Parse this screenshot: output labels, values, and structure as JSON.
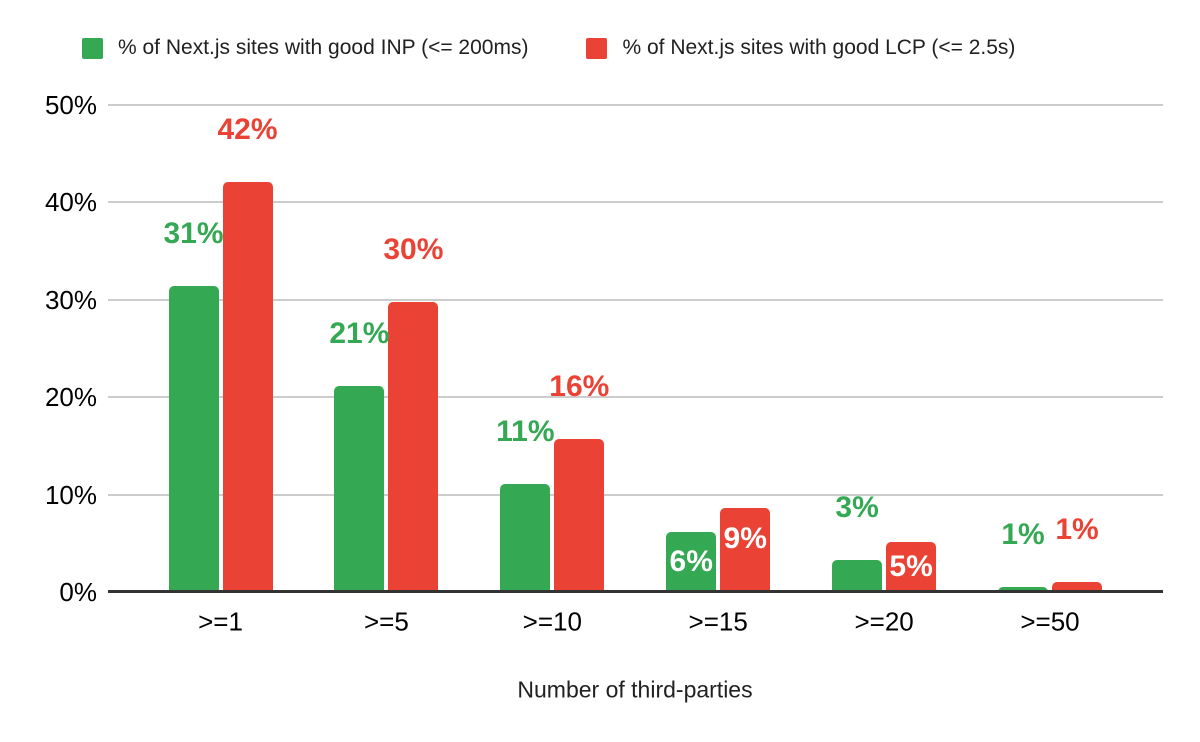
{
  "chart_data": {
    "type": "bar",
    "title": "",
    "xlabel": "Number of third-parties",
    "ylabel": "",
    "ylim": [
      0,
      50
    ],
    "grid": true,
    "legend_position": "top",
    "y_ticks": [
      "0%",
      "10%",
      "20%",
      "30%",
      "40%",
      "50%"
    ],
    "categories": [
      ">=1",
      ">=5",
      ">=10",
      ">=15",
      ">=20",
      ">=50"
    ],
    "series": [
      {
        "name": "% of Next.js sites with good INP (<= 200ms)",
        "color": "#34a853",
        "values": [
          31.4,
          21.1,
          11.1,
          6.2,
          3.3,
          0.5
        ],
        "labels": [
          "31%",
          "21%",
          "11%",
          "6%",
          "3%",
          "1%"
        ],
        "label_inside": [
          false,
          false,
          false,
          true,
          false,
          false
        ]
      },
      {
        "name": "% of Next.js sites with good LCP (<= 2.5s)",
        "color": "#ea4335",
        "values": [
          42.1,
          29.8,
          15.7,
          8.6,
          5.1,
          1.0
        ],
        "labels": [
          "42%",
          "30%",
          "16%",
          "9%",
          "5%",
          "1%"
        ],
        "label_inside": [
          false,
          false,
          false,
          true,
          true,
          false
        ]
      }
    ],
    "inside_label_color": "#ffffff",
    "grid_color": "#cccccc",
    "axis_line_color": "#333333",
    "tick_label_color": "#000000"
  }
}
